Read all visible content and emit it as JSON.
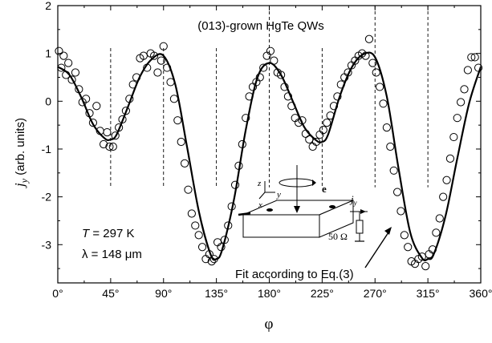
{
  "chart_data": {
    "type": "scatter",
    "title": "(013)-grown HgTe QWs",
    "xlabel": "φ",
    "ylabel_symbol": "j",
    "ylabel_subscript": "y",
    "ylabel_units": "(arb. units)",
    "xlim": [
      0,
      360
    ],
    "ylim": [
      -3.8,
      2.0
    ],
    "x_ticks": [
      0,
      45,
      90,
      135,
      180,
      225,
      270,
      315,
      360
    ],
    "x_tick_labels": [
      "0°",
      "45°",
      "90°",
      "135°",
      "180°",
      "225°",
      "270°",
      "315°",
      "360°"
    ],
    "y_ticks": [
      -3,
      -2,
      -1,
      0,
      1,
      2
    ],
    "y_tick_labels": [
      "-3",
      "-2",
      "-1",
      "0",
      "1",
      "2"
    ],
    "vertical_dashed_lines_x": [
      45,
      90,
      135,
      180,
      225,
      270,
      315
    ],
    "fit_label": "Fit according to Eq.(3)",
    "fit_curve": {
      "name": "Fit according to Eq.(3)",
      "x": [
        0,
        10,
        20,
        30,
        40,
        45,
        50,
        60,
        70,
        80,
        90,
        100,
        110,
        120,
        130,
        135,
        140,
        150,
        160,
        170,
        180,
        190,
        200,
        210,
        220,
        225,
        230,
        240,
        250,
        260,
        270,
        280,
        290,
        300,
        310,
        315,
        320,
        330,
        340,
        350,
        360
      ],
      "y": [
        0.72,
        0.55,
        0.08,
        -0.48,
        -0.78,
        -0.8,
        -0.7,
        -0.1,
        0.52,
        0.88,
        0.95,
        0.35,
        -0.95,
        -2.3,
        -3.2,
        -3.3,
        -3.1,
        -2.05,
        -0.6,
        0.5,
        0.8,
        0.55,
        0.0,
        -0.55,
        -0.82,
        -0.85,
        -0.7,
        0.1,
        0.7,
        0.98,
        0.92,
        0.1,
        -1.4,
        -2.75,
        -3.28,
        -3.3,
        -3.2,
        -2.4,
        -1.2,
        -0.05,
        0.72
      ]
    },
    "points": {
      "name": "measured",
      "x": [
        1,
        3,
        5,
        7,
        9,
        12,
        15,
        18,
        21,
        24,
        27,
        30,
        33,
        36,
        39,
        42,
        44,
        47,
        49,
        52,
        55,
        58,
        61,
        64,
        67,
        70,
        73,
        76,
        79,
        82,
        85,
        88,
        90,
        93,
        96,
        99,
        102,
        105,
        108,
        111,
        114,
        117,
        120,
        123,
        126,
        129,
        131,
        133,
        136,
        139,
        142,
        145,
        148,
        151,
        154,
        157,
        160,
        163,
        166,
        169,
        172,
        175,
        178,
        181,
        184,
        187,
        190,
        193,
        196,
        199,
        202,
        205,
        208,
        211,
        214,
        217,
        220,
        223,
        226,
        229,
        232,
        235,
        238,
        241,
        244,
        247,
        250,
        253,
        256,
        259,
        262,
        265,
        268,
        271,
        274,
        277,
        280,
        283,
        286,
        289,
        292,
        295,
        298,
        301,
        304,
        307,
        310,
        313,
        316,
        319,
        322,
        325,
        328,
        331,
        334,
        337,
        340,
        343,
        346,
        349,
        352,
        355,
        358
      ],
      "y": [
        1.05,
        0.7,
        0.95,
        0.55,
        0.8,
        0.45,
        0.6,
        0.25,
        -0.02,
        0.05,
        -0.25,
        -0.45,
        -0.1,
        -0.62,
        -0.9,
        -0.65,
        -0.95,
        -0.95,
        -0.72,
        -0.55,
        -0.38,
        -0.2,
        0.05,
        0.35,
        0.5,
        0.9,
        0.95,
        0.7,
        1.0,
        0.95,
        0.6,
        0.85,
        1.15,
        0.7,
        0.4,
        0.05,
        -0.4,
        -0.85,
        -1.3,
        -1.85,
        -2.35,
        -2.6,
        -2.8,
        -3.05,
        -3.3,
        -3.2,
        -3.35,
        -3.3,
        -2.95,
        -3.05,
        -2.9,
        -2.6,
        -2.2,
        -1.75,
        -1.35,
        -0.9,
        -0.35,
        0.1,
        0.3,
        0.4,
        0.5,
        0.7,
        0.95,
        1.05,
        0.85,
        0.6,
        0.55,
        0.3,
        0.1,
        -0.1,
        -0.35,
        -0.45,
        -0.4,
        -0.68,
        -0.8,
        -0.95,
        -0.85,
        -0.7,
        -0.6,
        -0.45,
        -0.3,
        -0.1,
        0.1,
        0.35,
        0.5,
        0.6,
        0.75,
        0.85,
        0.95,
        1.0,
        0.95,
        1.3,
        0.8,
        0.6,
        0.3,
        -0.05,
        -0.55,
        -0.95,
        -1.45,
        -1.9,
        -2.3,
        -2.8,
        -3.05,
        -3.35,
        -3.4,
        -3.3,
        -3.25,
        -3.45,
        -3.2,
        -3.1,
        -2.75,
        -2.45,
        -2.0,
        -1.65,
        -1.2,
        -0.75,
        -0.35,
        -0.02,
        0.25,
        0.65,
        0.92,
        0.92,
        0.7
      ]
    },
    "annotations": {
      "temperature_symbol": "T",
      "temperature_value": " = 297 K",
      "wavelength_symbol": "λ",
      "wavelength_value": " = 148 μm"
    },
    "inset": {
      "polarization_label": "e",
      "current_label": "j",
      "current_subscript": "y",
      "resistor_label": "50 Ω",
      "axis_x": "x",
      "axis_y": "y",
      "axis_z": "z"
    },
    "grid": false,
    "legend": "none"
  }
}
